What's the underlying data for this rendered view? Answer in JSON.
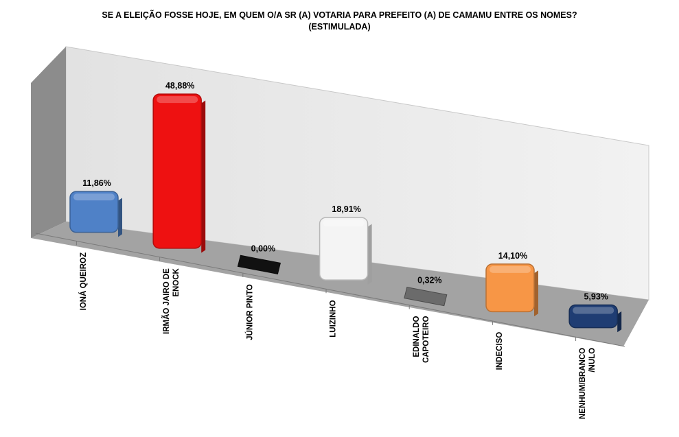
{
  "chart_data": {
    "type": "bar",
    "title": "SE A ELEIÇÃO FOSSE HOJE, EM QUEM O/A SR (A) VOTARIA PARA PREFEITO (A) DE CAMAMU ENTRE OS NOMES?",
    "subtitle": "(ESTIMULADA)",
    "categories": [
      "IONÁ QUEIROZ",
      "IRMÃO JAIRO DE ENOCK",
      "JÚNIOR PINTO",
      "LUIZINHO",
      "EDINALDO CAPOTEIRO",
      "INDECISO",
      "NENHUM/BRANCO /NULO"
    ],
    "category_lines": [
      [
        "IONÁ QUEIROZ"
      ],
      [
        "IRMÃO JAIRO DE",
        "ENOCK"
      ],
      [
        "JÚNIOR PINTO"
      ],
      [
        "LUIZINHO"
      ],
      [
        "EDINALDO",
        "CAPOTEIRO"
      ],
      [
        "INDECISO"
      ],
      [
        "NENHUM/BRANCO",
        "/NULO"
      ]
    ],
    "values": [
      11.86,
      48.88,
      0.0,
      18.91,
      0.32,
      14.1,
      5.93
    ],
    "value_labels": [
      "11,86%",
      "48,88%",
      "0,00%",
      "18,91%",
      "0,32%",
      "14,10%",
      "5,93%"
    ],
    "colors": [
      "#4f81c7",
      "#ee1111",
      "#111111",
      "#f4f4f4",
      "#6b6b6b",
      "#f79646",
      "#1f3d73"
    ],
    "ylim": [
      0,
      50
    ],
    "grid": false,
    "legend": "none"
  }
}
